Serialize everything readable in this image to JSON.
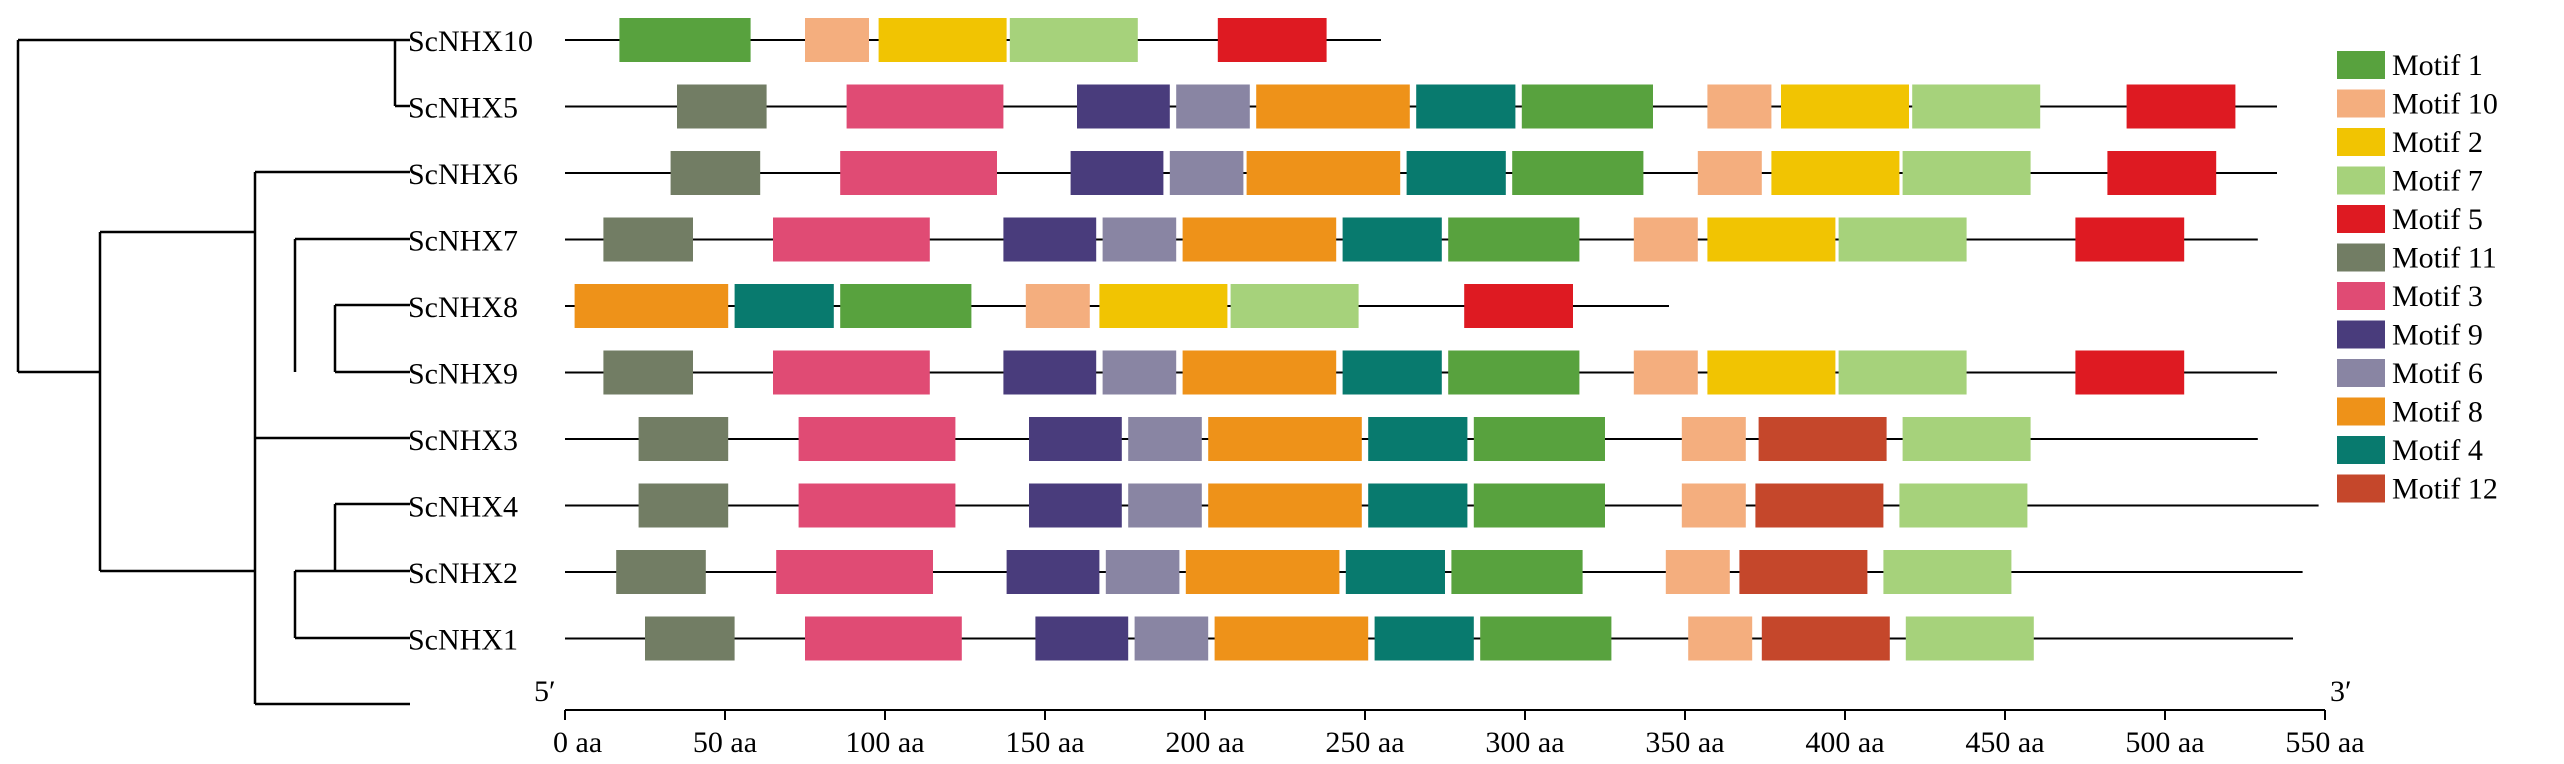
{
  "motif_colors": {
    "1": "#58a23e",
    "10": "#f4ae7e",
    "2": "#f1c402",
    "7": "#a6d27b",
    "5": "#de1a22",
    "11": "#727d64",
    "3": "#e04b74",
    "9": "#493c7c",
    "6": "#8985a3",
    "8": "#ee9219",
    "4": "#087a6e",
    "12": "#c5472b"
  },
  "legend": [
    {
      "motif": "1",
      "label": "Motif 1"
    },
    {
      "motif": "10",
      "label": "Motif 10"
    },
    {
      "motif": "2",
      "label": "Motif 2"
    },
    {
      "motif": "7",
      "label": "Motif 7"
    },
    {
      "motif": "5",
      "label": "Motif 5"
    },
    {
      "motif": "11",
      "label": "Motif 11"
    },
    {
      "motif": "3",
      "label": "Motif 3"
    },
    {
      "motif": "9",
      "label": "Motif 9"
    },
    {
      "motif": "6",
      "label": "Motif 6"
    },
    {
      "motif": "8",
      "label": "Motif 8"
    },
    {
      "motif": "4",
      "label": "Motif 4"
    },
    {
      "motif": "12",
      "label": "Motif 12"
    }
  ],
  "axis": {
    "start_label": "5′",
    "end_label": "3′",
    "unit": "aa",
    "max": 550,
    "ticks": [
      "0 aa",
      "50 aa",
      "100 aa",
      "150 aa",
      "200 aa",
      "250 aa",
      "300 aa",
      "350 aa",
      "400 aa",
      "450 aa",
      "500 aa",
      "550 aa"
    ]
  },
  "genes": [
    {
      "name": "ScNHX10",
      "length": 255,
      "motifs": [
        [
          "1",
          17,
          58
        ],
        [
          "10",
          75,
          95
        ],
        [
          "2",
          98,
          138
        ],
        [
          "7",
          139,
          179
        ],
        [
          "5",
          204,
          238
        ]
      ]
    },
    {
      "name": "ScNHX5",
      "length": 535,
      "motifs": [
        [
          "11",
          35,
          63
        ],
        [
          "3",
          88,
          137
        ],
        [
          "9",
          160,
          189
        ],
        [
          "6",
          191,
          214
        ],
        [
          "8",
          216,
          264
        ],
        [
          "4",
          266,
          297
        ],
        [
          "1",
          299,
          340
        ],
        [
          "10",
          357,
          377
        ],
        [
          "2",
          380,
          420
        ],
        [
          "7",
          421,
          461
        ],
        [
          "5",
          488,
          522
        ]
      ]
    },
    {
      "name": "ScNHX6",
      "length": 535,
      "motifs": [
        [
          "11",
          33,
          61
        ],
        [
          "3",
          86,
          135
        ],
        [
          "9",
          158,
          187
        ],
        [
          "6",
          189,
          212
        ],
        [
          "8",
          213,
          261
        ],
        [
          "4",
          263,
          294
        ],
        [
          "1",
          296,
          337
        ],
        [
          "10",
          354,
          374
        ],
        [
          "2",
          377,
          417
        ],
        [
          "7",
          418,
          458
        ],
        [
          "5",
          482,
          516
        ]
      ]
    },
    {
      "name": "ScNHX7",
      "length": 529,
      "motifs": [
        [
          "11",
          12,
          40
        ],
        [
          "3",
          65,
          114
        ],
        [
          "9",
          137,
          166
        ],
        [
          "6",
          168,
          191
        ],
        [
          "8",
          193,
          241
        ],
        [
          "4",
          243,
          274
        ],
        [
          "1",
          276,
          317
        ],
        [
          "10",
          334,
          354
        ],
        [
          "2",
          357,
          397
        ],
        [
          "7",
          398,
          438
        ],
        [
          "5",
          472,
          506
        ]
      ]
    },
    {
      "name": "ScNHX8",
      "length": 345,
      "motifs": [
        [
          "8",
          3,
          51
        ],
        [
          "4",
          53,
          84
        ],
        [
          "1",
          86,
          127
        ],
        [
          "10",
          144,
          164
        ],
        [
          "2",
          167,
          207
        ],
        [
          "7",
          208,
          248
        ],
        [
          "5",
          281,
          315
        ]
      ]
    },
    {
      "name": "ScNHX9",
      "length": 535,
      "motifs": [
        [
          "11",
          12,
          40
        ],
        [
          "3",
          65,
          114
        ],
        [
          "9",
          137,
          166
        ],
        [
          "6",
          168,
          191
        ],
        [
          "8",
          193,
          241
        ],
        [
          "4",
          243,
          274
        ],
        [
          "1",
          276,
          317
        ],
        [
          "10",
          334,
          354
        ],
        [
          "2",
          357,
          397
        ],
        [
          "7",
          398,
          438
        ],
        [
          "5",
          472,
          506
        ]
      ]
    },
    {
      "name": "ScNHX3",
      "length": 529,
      "motifs": [
        [
          "11",
          23,
          51
        ],
        [
          "3",
          73,
          122
        ],
        [
          "9",
          145,
          174
        ],
        [
          "6",
          176,
          199
        ],
        [
          "8",
          201,
          249
        ],
        [
          "4",
          251,
          282
        ],
        [
          "1",
          284,
          325
        ],
        [
          "10",
          349,
          369
        ],
        [
          "12",
          373,
          413
        ],
        [
          "7",
          418,
          458
        ]
      ]
    },
    {
      "name": "ScNHX4",
      "length": 548,
      "motifs": [
        [
          "11",
          23,
          51
        ],
        [
          "3",
          73,
          122
        ],
        [
          "9",
          145,
          174
        ],
        [
          "6",
          176,
          199
        ],
        [
          "8",
          201,
          249
        ],
        [
          "4",
          251,
          282
        ],
        [
          "1",
          284,
          325
        ],
        [
          "10",
          349,
          369
        ],
        [
          "12",
          372,
          412
        ],
        [
          "7",
          417,
          457
        ]
      ]
    },
    {
      "name": "ScNHX2",
      "length": 543,
      "motifs": [
        [
          "11",
          16,
          44
        ],
        [
          "3",
          66,
          115
        ],
        [
          "9",
          138,
          167
        ],
        [
          "6",
          169,
          192
        ],
        [
          "8",
          194,
          242
        ],
        [
          "4",
          244,
          275
        ],
        [
          "1",
          277,
          318
        ],
        [
          "10",
          344,
          364
        ],
        [
          "12",
          367,
          407
        ],
        [
          "7",
          412,
          452
        ]
      ]
    },
    {
      "name": "ScNHX1",
      "length": 540,
      "motifs": [
        [
          "11",
          25,
          53
        ],
        [
          "3",
          75,
          124
        ],
        [
          "9",
          147,
          176
        ],
        [
          "6",
          178,
          201
        ],
        [
          "8",
          203,
          251
        ],
        [
          "4",
          253,
          284
        ],
        [
          "1",
          286,
          327
        ],
        [
          "10",
          351,
          371
        ],
        [
          "12",
          374,
          414
        ],
        [
          "7",
          419,
          459
        ]
      ]
    }
  ]
}
